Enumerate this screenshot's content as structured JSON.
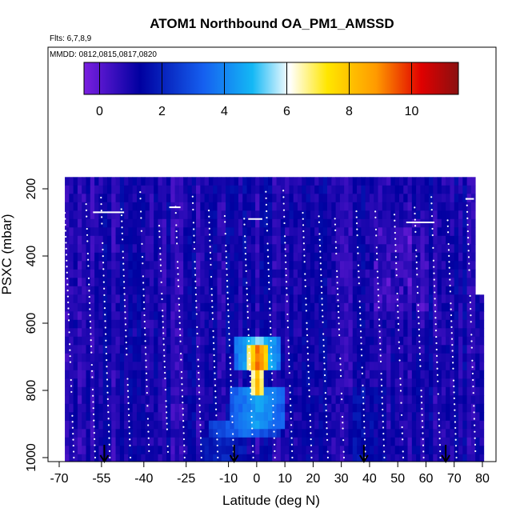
{
  "chart_data": {
    "type": "heatmap",
    "title": "ATOM1 Northbound OA_PM1_AMSSD",
    "flights_text": "Flts: 6,7,8,9",
    "dates_text": "MMDD: 0812,0815,0817,0820",
    "xlabel": "Latitude (deg N)",
    "ylabel": "PSXC (mbar)",
    "xlim": [
      -70,
      80
    ],
    "ylim": [
      1000,
      0
    ],
    "xticks": [
      -70,
      -55,
      -40,
      -25,
      -10,
      0,
      10,
      20,
      30,
      40,
      50,
      60,
      70,
      80
    ],
    "yticks": [
      200,
      400,
      600,
      800,
      1000
    ],
    "colorbar": {
      "range": [
        -0.5,
        11.5
      ],
      "ticks": [
        0,
        2,
        4,
        6,
        8,
        10
      ],
      "colors": [
        "#7a1fe0",
        "#0000a0",
        "#1560f0",
        "#14b8f5",
        "#ffffff",
        "#ffe600",
        "#ff9a00",
        "#e00000",
        "#8a1010"
      ],
      "stops": [
        0,
        0.15,
        0.32,
        0.45,
        0.55,
        0.65,
        0.78,
        0.9,
        1
      ]
    },
    "data_extent": {
      "lat": [
        -68,
        80
      ],
      "pressure": [
        165,
        1000
      ]
    },
    "descent_markers_lat": [
      -54,
      -8,
      38,
      67
    ],
    "hotspot": {
      "peak_value": 10.5,
      "peak_lat": -2,
      "peak_pressure": 700,
      "plume_values": [
        {
          "lat": [
            -8,
            8
          ],
          "p": [
            620,
            740
          ],
          "v": 5.5
        },
        {
          "lat": [
            -4,
            4
          ],
          "p": [
            650,
            720
          ],
          "v": 9.5
        },
        {
          "lat": [
            -3,
            2
          ],
          "p": [
            730,
            800
          ],
          "v": 8.0
        },
        {
          "lat": [
            -10,
            10
          ],
          "p": [
            780,
            900
          ],
          "v": 4.5
        },
        {
          "lat": [
            -18,
            8
          ],
          "p": [
            880,
            940
          ],
          "v": 3.5
        },
        {
          "lat": [
            -20,
            -4
          ],
          "p": [
            940,
            1000
          ],
          "v": 2.0
        }
      ]
    },
    "background_value": 1.0
  }
}
